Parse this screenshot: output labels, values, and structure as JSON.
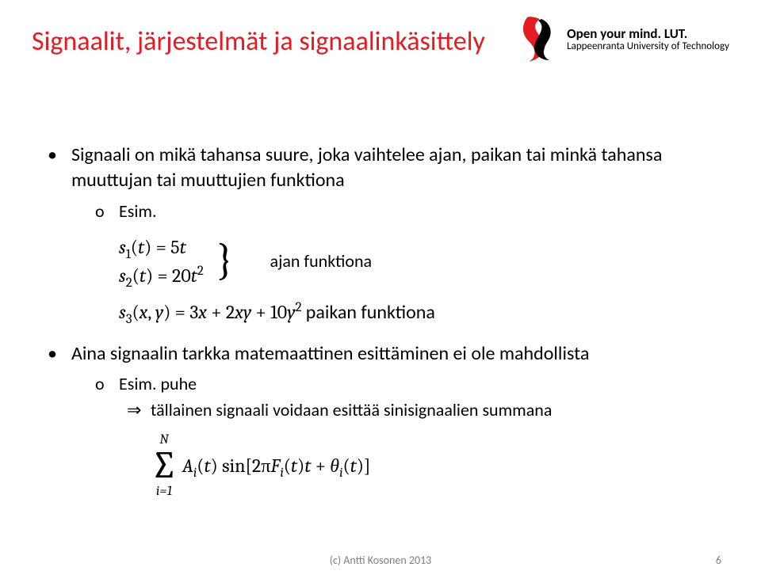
{
  "title": "Signaalit, järjestelmät ja signaalinkäsittely",
  "logo": {
    "main": "Open your mind. LUT.",
    "sub": "Lappeenranta University of Technology",
    "colors": {
      "red": "#e31b23",
      "black": "#000000"
    }
  },
  "bullets": {
    "b1": "Signaali on mikä tahansa suure, joka vaihtelee ajan, paikan tai minkä tahansa muuttujan tai muuttujien funktiona",
    "b1_sub": "Esim.",
    "math_s1": "s₁(t) = 5t",
    "math_s1_html": "<span class='it'>s</span><sub>1</sub>(<span class='it'>t</span>) = 5<span class='it'>t</span>",
    "math_s2": "s₂(t) = 20t²",
    "math_s2_html": "<span class='it'>s</span><sub>2</sub>(<span class='it'>t</span>) = 20<span class='it'>t</span><sup>2</sup>",
    "ajan_label": "ajan funktiona",
    "math_s3_html": "<span class='it'>s</span><sub>3</sub>(<span class='it'>x</span>, <span class='it'>y</span>) = 3<span class='it'>x</span> + 2<span class='it'>xy</span> + 10<span class='it'>y</span><sup>2</sup>",
    "paikan_label": " paikan funktiona",
    "b2": "Aina signaalin tarkka matemaattinen esittäminen ei ole mahdollista",
    "b2_sub": "Esim. puhe",
    "b2_sub2": "tällainen signaali voidaan esittää sinisignaalien summana",
    "sum_top": "N",
    "sum_bot": "i=1",
    "sum_body_html": "<span class='it'>A<sub>i</sub></span>(<span class='it'>t</span>) sin[2π<span class='it'>F<sub>i</sub></span>(<span class='it'>t</span>)<span class='it'>t</span> + <span class='it'>θ<sub>i</sub></span>(<span class='it'>t</span>)]"
  },
  "footer": "(c) Antti Kosonen 2013",
  "page": "6"
}
